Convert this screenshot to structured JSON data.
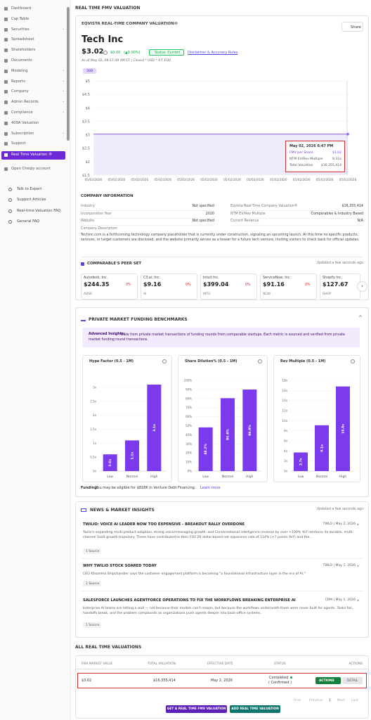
{
  "sidebar": {
    "items": [
      "Dashboard",
      "Cap Table",
      "Securities",
      "Spreadsheet",
      "Shareholders",
      "Documents",
      "Modeling",
      "Reports",
      "Company",
      "Admin Records",
      "Compliance",
      "409A Valuation",
      "Subscription",
      "Support",
      "Real Time Valuation ®",
      "Open Cheqly account"
    ],
    "help": [
      "Talk to Expert",
      "Support Articles",
      "Real-time Valuation FAQ",
      "General FAQ"
    ]
  },
  "page_title": "REAL TIME FMV VALUATION",
  "valuation_card": {
    "title": "EQVISTA REAL-TIME COMPANY VALUATION®",
    "share": "Share",
    "company": "Tech Inc",
    "price": "$3.02",
    "change": "$0.00",
    "change_pct": "(▲0.00%)",
    "status": "Status: Current",
    "disclaimer": "Disclaimer & Accuracy Rules",
    "as_of": "As of May 02, 09:17:49 AM ET | Closed * USD * X-T EQV",
    "range": "30D"
  },
  "price_chart": {
    "type": "line",
    "x": [
      "05/02/2026",
      "05/02/2026",
      "05/02/2026",
      "05/02/2026",
      "05/02/2026",
      "05/02/2026",
      "05/02/2026",
      "05/02/2026",
      "05/02/2026",
      "05/02/2026",
      "05/02/2026",
      "05/02/2026"
    ],
    "values": [
      3.02,
      3.02,
      3.02,
      3.02,
      3.02,
      3.02,
      3.02,
      3.02,
      3.02,
      3.02,
      3.02,
      3.02
    ],
    "color": "#8b5cf6",
    "ylim": [
      1.5,
      5
    ],
    "yticks": [
      {
        "value": 1.5,
        "label": "$1.5"
      },
      {
        "value": 2,
        "label": "$2"
      },
      {
        "value": 2.5,
        "label": "$2.5"
      },
      {
        "value": 3,
        "label": "$3"
      },
      {
        "value": 3.5,
        "label": "$3.5"
      },
      {
        "value": 4,
        "label": "$4"
      },
      {
        "value": 4.5,
        "label": "$4.5"
      },
      {
        "value": 5,
        "label": "$5"
      }
    ],
    "tooltip": {
      "date": "May 02, 2026 6:47 PM",
      "rows": [
        [
          "FMV per Share",
          "$3.02"
        ],
        [
          "NTM EV/Rev Multiple",
          "8.31x"
        ],
        [
          "Total Valuation",
          "$16,355,414"
        ]
      ]
    }
  },
  "company_info": {
    "heading": "COMPANY INFORMATION",
    "rows": [
      [
        "Industry",
        "Not specified",
        "Eqvista Real-Time Company Valuation®",
        "$16,355,414"
      ],
      [
        "Incorporation Year",
        "2020",
        "NTM EV/Rev Multiple",
        "Comparables & Industry Based"
      ],
      [
        "Website",
        "Not specified",
        "Current Revenue",
        "N/A"
      ]
    ],
    "description_label": "Company Description",
    "description": "Techinc.com is a forthcoming technology company placeholder that is currently under construction, signaling an upcoming launch. At this time no specific products, services, or target customers are disclosed, and the website primarily serves as a teaser for a future tech venture, inviting visitors to check back for official updates."
  },
  "peers": {
    "heading": "COMPARABLE'S PEER SET",
    "updated": "Updated a few seconds ago",
    "items": [
      {
        "name": "Autodesk, Inc.",
        "price": "$244.35",
        "change": "0%",
        "ticker": "ADSK"
      },
      {
        "name": "C3.ai, Inc.",
        "price": "$9.16",
        "change": "0%",
        "ticker": "AI"
      },
      {
        "name": "Intuit Inc.",
        "price": "$399.04",
        "change": "0%",
        "ticker": "INTU"
      },
      {
        "name": "ServiceNow, Inc.",
        "price": "$91.16",
        "change": "0%",
        "ticker": "NOW"
      },
      {
        "name": "Shopify Inc.",
        "price": "$127.67",
        "change": "0%",
        "ticker": "SHOP"
      }
    ]
  },
  "benchmarks": {
    "heading": "PRIVATE MARKET FUNDING BENCHMARKS",
    "insight_label": "Advanced Insights:",
    "insight": "Data from private market transactions of funding rounds from comparable startups. Each metric is sourced and verified from private market funding round transactions.",
    "charts": [
      {
        "type": "bar",
        "title": "Hype Factor (0.5 - 1M)",
        "categories": [
          "Low",
          "Normal",
          "High"
        ],
        "values": [
          0.6,
          1.1,
          3.1
        ],
        "value_labels": [
          "0.6x",
          "1.1x",
          "3.1x"
        ],
        "color": "#7c3aed",
        "ylim": [
          0,
          3.25
        ],
        "yticks": [
          {
            "value": 0,
            "label": "0x"
          },
          {
            "value": 0.5,
            "label": "0.5x"
          },
          {
            "value": 1,
            "label": "1x"
          },
          {
            "value": 1.5,
            "label": "1.5x"
          },
          {
            "value": 2,
            "label": "2x"
          },
          {
            "value": 2.5,
            "label": "2.5x"
          },
          {
            "value": 3,
            "label": "3x"
          }
        ]
      },
      {
        "type": "bar",
        "title": "Share Dilution% (0.5 - 1M)",
        "categories": [
          "Low",
          "Normal",
          "High"
        ],
        "values": [
          48.2,
          80.4,
          89.9
        ],
        "value_labels": [
          "48.2%",
          "80.4%",
          "89.9%"
        ],
        "color": "#7c3aed",
        "ylim": [
          0,
          100
        ],
        "yticks": [
          {
            "value": 0,
            "label": "0%"
          },
          {
            "value": 10,
            "label": "10%"
          },
          {
            "value": 20,
            "label": "20%"
          },
          {
            "value": 30,
            "label": "30%"
          },
          {
            "value": 40,
            "label": "40%"
          },
          {
            "value": 50,
            "label": "50%"
          },
          {
            "value": 60,
            "label": "60%"
          },
          {
            "value": 70,
            "label": "70%"
          },
          {
            "value": 80,
            "label": "80%"
          },
          {
            "value": 90,
            "label": "90%"
          },
          {
            "value": 100,
            "label": "100%"
          }
        ]
      },
      {
        "type": "bar",
        "title": "Rev Multiple (0.5 - 1M)",
        "categories": [
          "Low",
          "Normal",
          "High"
        ],
        "values": [
          3.7,
          9.1,
          16.8
        ],
        "value_labels": [
          "3.7x",
          "9.1x",
          "16.8x"
        ],
        "color": "#7c3aed",
        "ylim": [
          0,
          18
        ],
        "yticks": [
          {
            "value": 0,
            "label": "0x"
          },
          {
            "value": 2,
            "label": "2x"
          },
          {
            "value": 4,
            "label": "4x"
          },
          {
            "value": 6,
            "label": "6x"
          },
          {
            "value": 8,
            "label": "8x"
          },
          {
            "value": 10,
            "label": "10x"
          },
          {
            "value": 12,
            "label": "12x"
          },
          {
            "value": 14,
            "label": "14x"
          },
          {
            "value": 16,
            "label": "16x"
          },
          {
            "value": 18,
            "label": "18x"
          }
        ]
      }
    ],
    "funding_label": "Funding:",
    "funding": "You may be eligible for $818K in Venture Debt Financing.",
    "learn_more": "Learn more"
  },
  "news": {
    "heading": "NEWS & MARKET INSIGHTS",
    "updated": "Updated a few seconds ago",
    "items": [
      {
        "title": "TWILIO: VOICE AI LEADER NOW TOO EXPENSIVE - BREAKOUT RALLY OVERDONE",
        "meta": "TWLO | May 2, 2026",
        "body": "Twilio's expanding multi-product adoption, strong voice/messaging growth, and Conversational intelligence revenue by over +100% YoY reinforce its durable, multi-channel SaaS growth trajectory. These have contributed to their FQ1'26 dollar-based net expansion rate of 114% (+7 points YoY) and the...",
        "source": "1 Source"
      },
      {
        "title": "WHY TWILIO STOCK SOARED TODAY",
        "meta": "TWLO | May 1, 2026",
        "body": "CEO Khozema Shipchandler says the customer engagement platform is becoming \"a foundational infrastructure layer in the era of AI.\"",
        "source": "1 Source"
      },
      {
        "title": "SALESFORCE LAUNCHES AGENTFORCE OPERATIONS TO FIX THE WORKFLOWS BREAKING ENTERPRISE AI",
        "meta": "CRM | May 1, 2026",
        "body": "Enterprise AI teams are hitting a wall — not because their models can't reason, but because the workflows underneath them were never built for agents. Tasks fail, handoffs break, and the problem compounds as organizations push agents deeper into back-office systems.",
        "source": "1 Source"
      }
    ]
  },
  "valuations": {
    "heading": "ALL REAL TIME VALUATIONS",
    "columns": [
      "FAIR MARKET VALUE",
      "TOTAL VALUATION",
      "EFFECTIVE DATE",
      "STATUS",
      "ACTIONS"
    ],
    "rows": [
      {
        "fmv": "$3.02",
        "total": "$16,355,414",
        "date": "May 2, 2026",
        "status": "Completed",
        "status_note": "( Confirmed )",
        "actions": "ACTIONS",
        "detail": "DETAIL"
      }
    ],
    "pagination": [
      "First",
      "Previous",
      "1",
      "Next",
      "Last"
    ],
    "buttons": [
      "GET A REAL TIME FMV VALUATION",
      "ADD REAL TIME VALUATION"
    ]
  }
}
